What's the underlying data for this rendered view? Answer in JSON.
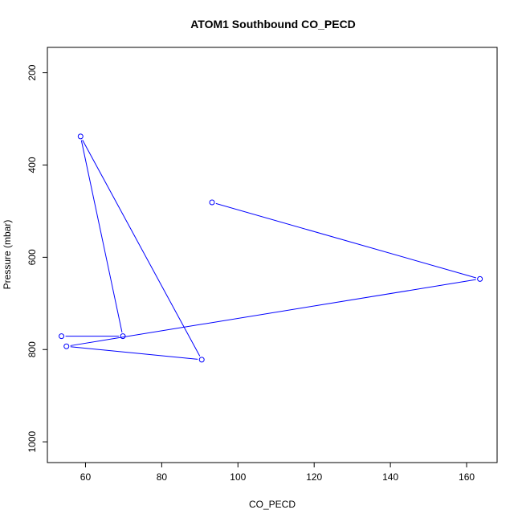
{
  "chart_data": {
    "type": "line",
    "title": "ATOM1 Southbound CO_PECD",
    "xlabel": "CO_PECD",
    "ylabel": "Pressure (mbar)",
    "xlim": [
      50,
      168
    ],
    "ylim": [
      1045,
      145
    ],
    "y_reversed": true,
    "x_ticks": [
      60,
      80,
      100,
      120,
      140,
      160
    ],
    "x_tick_labels": [
      "60",
      "80",
      "100",
      "120",
      "140",
      "160"
    ],
    "y_ticks": [
      200,
      400,
      600,
      800,
      1000
    ],
    "y_tick_labels": [
      "200",
      "400",
      "600",
      "800",
      "1000"
    ],
    "grid": false,
    "series": [
      {
        "color": "#0000ff",
        "marker": "open-circle",
        "points": [
          {
            "x": 93.2,
            "y": 481
          },
          {
            "x": 163.5,
            "y": 647
          },
          {
            "x": 55.0,
            "y": 793
          },
          {
            "x": 90.5,
            "y": 822
          },
          {
            "x": 58.7,
            "y": 338
          },
          {
            "x": 69.8,
            "y": 771
          },
          {
            "x": 53.7,
            "y": 771
          }
        ]
      }
    ]
  }
}
